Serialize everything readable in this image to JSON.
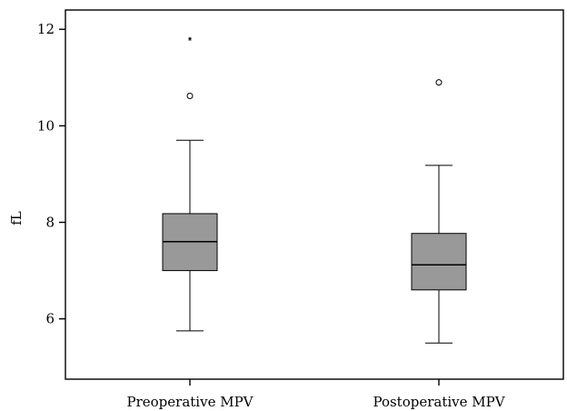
{
  "chart_data": {
    "type": "boxplot",
    "ylabel": "fL",
    "xlabel": "",
    "ylim": [
      4.75,
      12.4
    ],
    "yticks": [
      6,
      8,
      10,
      12
    ],
    "grid": false,
    "colors": {
      "box_fill": "#999999",
      "stroke": "#000000",
      "frame": "#000000"
    },
    "categories": [
      "Preoperative MPV",
      "Postoperative MPV"
    ],
    "boxes": [
      {
        "label": "Preoperative MPV",
        "whisker_low": 5.75,
        "q1": 7.0,
        "median": 7.6,
        "q3": 8.18,
        "whisker_high": 9.7,
        "outliers": [
          10.62
        ],
        "extremes": [
          11.8
        ]
      },
      {
        "label": "Postoperative MPV",
        "whisker_low": 5.5,
        "q1": 6.6,
        "median": 7.12,
        "q3": 7.77,
        "whisker_high": 9.18,
        "outliers": [
          10.9
        ],
        "extremes": []
      }
    ]
  }
}
